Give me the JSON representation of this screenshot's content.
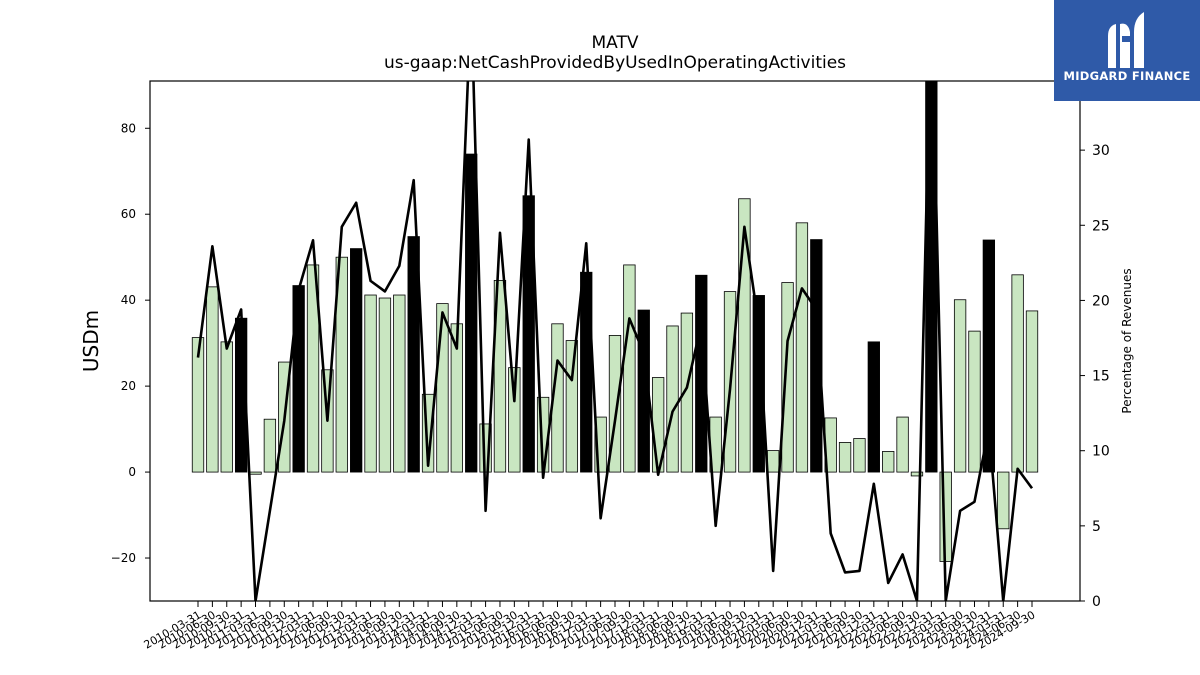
{
  "chart_data": {
    "type": "bar",
    "title": "MATV",
    "subtitle": "us-gaap:NetCashProvidedByUsedInOperatingActivities",
    "ylabel": "USDm",
    "ylabel_right": "Percentage of Revenues",
    "ylim": [
      -30,
      91
    ],
    "ylim_right": [
      0,
      34.6
    ],
    "yticks": [
      -20,
      0,
      20,
      40,
      60,
      80
    ],
    "yticks_right": [
      0,
      5,
      10,
      15,
      20,
      25,
      30,
      35
    ],
    "grid": false,
    "bar_colors": {
      "quarter": "#c9e6c1",
      "fiscal_year_end": "#000000"
    },
    "line_color": "#000000",
    "categories": [
      "2010-03-31",
      "2010-06-30",
      "2010-09-30",
      "2010-12-31",
      "2011-03-31",
      "2011-06-30",
      "2011-09-30",
      "2011-12-31",
      "2012-03-31",
      "2012-06-30",
      "2012-09-30",
      "2012-12-31",
      "2013-03-31",
      "2013-06-30",
      "2013-09-30",
      "2013-12-31",
      "2014-03-31",
      "2014-06-30",
      "2014-09-30",
      "2014-12-31",
      "2015-03-31",
      "2015-06-30",
      "2015-09-30",
      "2015-12-31",
      "2016-03-31",
      "2016-06-30",
      "2016-09-30",
      "2016-12-31",
      "2017-03-31",
      "2017-06-30",
      "2017-09-30",
      "2017-12-31",
      "2018-03-31",
      "2018-06-30",
      "2018-09-30",
      "2018-12-31",
      "2019-03-31",
      "2019-06-30",
      "2019-09-30",
      "2019-12-31",
      "2020-03-31",
      "2020-06-30",
      "2020-09-30",
      "2020-12-31",
      "2021-03-31",
      "2021-06-30",
      "2021-09-30",
      "2021-12-31",
      "2022-03-31",
      "2022-06-30",
      "2022-09-30",
      "2022-12-31",
      "2023-03-31",
      "2023-06-30",
      "2023-09-30",
      "2023-12-31",
      "2024-03-31",
      "2024-06-30",
      "2024-09-30"
    ],
    "values": [
      31.3,
      43.1,
      30.3,
      35.8,
      -0.5,
      12.3,
      25.6,
      43.4,
      48.2,
      23.8,
      50.0,
      52.0,
      41.2,
      40.5,
      41.2,
      54.8,
      18.1,
      39.2,
      34.5,
      74.0,
      11.2,
      44.6,
      24.3,
      64.3,
      17.4,
      34.5,
      30.6,
      46.5,
      12.8,
      31.8,
      48.2,
      37.7,
      22.0,
      34.0,
      37.0,
      45.8,
      12.8,
      42.0,
      63.6,
      41.1,
      5.0,
      44.1,
      58.0,
      54.1,
      12.6,
      6.9,
      7.8,
      30.3,
      4.8,
      12.8,
      -0.9,
      91.0,
      -20.8,
      40.1,
      32.8,
      54.0,
      -13.2,
      45.9,
      37.5
    ],
    "fiscal_year_end": [
      false,
      false,
      false,
      true,
      false,
      false,
      false,
      true,
      false,
      false,
      false,
      true,
      false,
      false,
      false,
      true,
      false,
      false,
      false,
      true,
      false,
      false,
      false,
      true,
      false,
      false,
      false,
      true,
      false,
      false,
      false,
      true,
      false,
      false,
      false,
      true,
      false,
      false,
      false,
      true,
      false,
      false,
      false,
      true,
      false,
      false,
      false,
      true,
      false,
      false,
      false,
      true,
      false,
      false,
      false,
      true,
      false,
      false,
      false
    ],
    "series": [
      {
        "values": [
          16.2,
          23.6,
          16.8,
          19.4,
          0.0,
          6.0,
          12.0,
          20.7,
          24.0,
          12.0,
          24.9,
          26.5,
          21.3,
          20.6,
          22.3,
          28.0,
          9.0,
          19.2,
          16.8,
          40.0,
          6.0,
          24.5,
          13.3,
          30.7,
          8.2,
          16.0,
          14.7,
          23.8,
          5.5,
          12.0,
          18.8,
          16.5,
          8.4,
          12.6,
          14.2,
          18.4,
          5.0,
          14.1,
          24.9,
          18.3,
          2.0,
          17.3,
          20.8,
          19.4,
          4.5,
          1.9,
          2.0,
          7.8,
          1.2,
          3.1,
          0.0,
          40.0,
          0.0,
          6.0,
          6.6,
          11.5,
          0.0,
          8.8,
          7.5
        ]
      }
    ]
  },
  "logo": {
    "text": "MIDGARD FINANCE"
  }
}
